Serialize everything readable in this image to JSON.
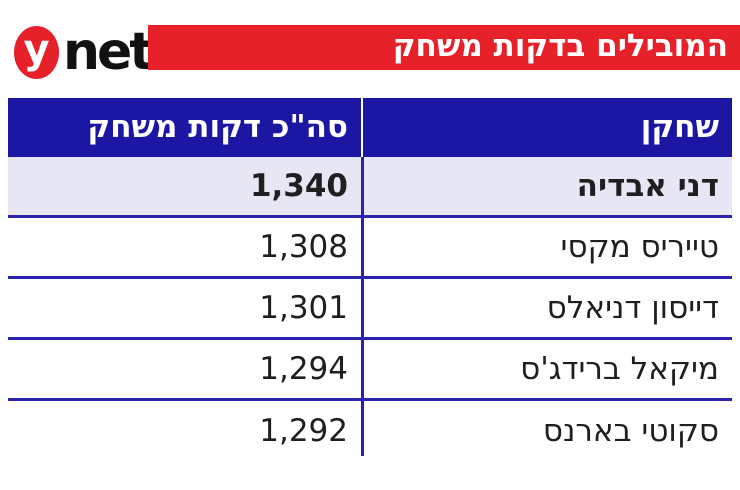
{
  "brand": {
    "logo_y": "y",
    "logo_net": "net"
  },
  "banner": {
    "title": "המובילים בדקות משחק"
  },
  "table": {
    "columns": {
      "player": "שחקן",
      "minutes": "סה\"כ דקות משחק"
    },
    "rows": [
      {
        "player": "דני אבדיה",
        "minutes": "1,340",
        "highlight": true
      },
      {
        "player": "טייריס מקסי",
        "minutes": "1,308",
        "highlight": false
      },
      {
        "player": "דייסון דניאלס",
        "minutes": "1,301",
        "highlight": false
      },
      {
        "player": "מיקאל ברידג'ס",
        "minutes": "1,294",
        "highlight": false
      },
      {
        "player": "סקוטי בארנס",
        "minutes": "1,292",
        "highlight": false
      }
    ]
  },
  "colors": {
    "brand_red": "#e7212a",
    "header_blue": "#1c17a3",
    "line_blue": "#2a23ae",
    "highlight_row": "#e7e6f4",
    "white": "#ffffff"
  },
  "chart_data": {
    "type": "table",
    "title": "המובילים בדקות משחק",
    "columns": [
      "שחקן",
      "סה\"כ דקות משחק"
    ],
    "rows": [
      [
        "דני אבדיה",
        1340
      ],
      [
        "טייריס מקסי",
        1308
      ],
      [
        "דייסון דניאלס",
        1301
      ],
      [
        "מיקאל ברידג'ס",
        1294
      ],
      [
        "סקוטי בארנס",
        1292
      ]
    ],
    "highlighted_row": "דני אבדיה",
    "layout": {
      "direction": "rtl",
      "header_background": "#1c17a3",
      "accent": "#e7212a"
    }
  }
}
